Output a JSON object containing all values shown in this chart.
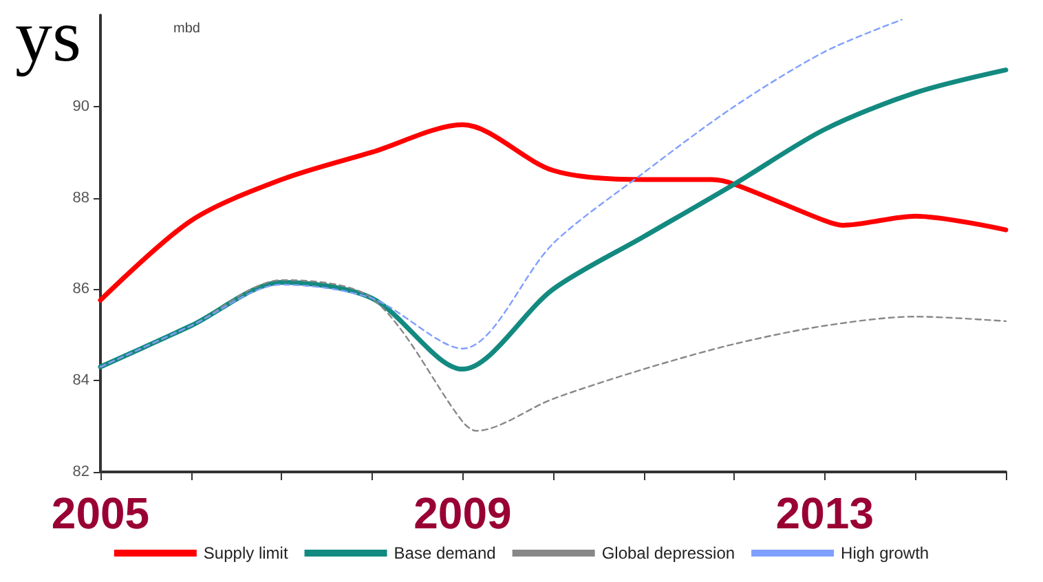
{
  "chart_data": {
    "type": "line",
    "title": "ys",
    "ylabel": "mbd",
    "x": [
      2005,
      2006,
      2007,
      2008,
      2009,
      2010,
      2011,
      2012,
      2013,
      2014,
      2015
    ],
    "series": [
      {
        "name": "Supply limit",
        "color": "#ff0000",
        "line_style": "solid",
        "x": [
          2005,
          2006,
          2007,
          2008,
          2009,
          2010,
          2011,
          2011.75,
          2012,
          2013,
          2013.2,
          2014,
          2015
        ],
        "values": [
          85.76,
          87.5,
          88.4,
          89.0,
          89.6,
          88.6,
          88.4,
          88.4,
          88.3,
          87.5,
          87.4,
          87.6,
          87.3
        ]
      },
      {
        "name": "Base demand",
        "color": "#138a80",
        "line_style": "solid",
        "values": [
          84.3,
          85.2,
          86.15,
          85.8,
          84.25,
          86.0,
          87.15,
          88.3,
          89.5,
          90.3,
          90.8
        ]
      },
      {
        "name": "Global depression",
        "color": "#888888",
        "line_style": "dashed",
        "x": [
          2005,
          2006,
          2007,
          2008,
          2009,
          2009.15,
          2010,
          2011,
          2012,
          2013,
          2014,
          2015
        ],
        "values": [
          84.3,
          85.2,
          86.2,
          85.8,
          83.1,
          82.9,
          83.6,
          84.25,
          84.8,
          85.2,
          85.4,
          85.3
        ]
      },
      {
        "name": "High growth",
        "color": "#7f9fff",
        "line_style": "dashed",
        "x": [
          2005,
          2006,
          2007,
          2008,
          2009,
          2010,
          2011,
          2012,
          2013,
          2013.85
        ],
        "values": [
          84.3,
          85.2,
          86.1,
          85.8,
          84.7,
          87.0,
          88.55,
          90.0,
          91.2,
          91.9
        ]
      }
    ],
    "xlim": [
      2005,
      2015
    ],
    "xticks": [
      2005,
      {
        "value": 2006,
        "label": null
      },
      {
        "value": 2007,
        "label": null
      },
      {
        "value": 2008,
        "label": null
      },
      2009,
      {
        "value": 2010,
        "label": null
      },
      {
        "value": 2011,
        "label": null
      },
      {
        "value": 2012,
        "label": null
      },
      2013,
      {
        "value": 2014,
        "label": null
      },
      {
        "value": 2015,
        "label": null
      }
    ],
    "ylim": [
      82,
      92
    ],
    "yticks": [
      82,
      84,
      86,
      88,
      90
    ],
    "grid": false,
    "legend": "bottom",
    "marker": "none"
  }
}
